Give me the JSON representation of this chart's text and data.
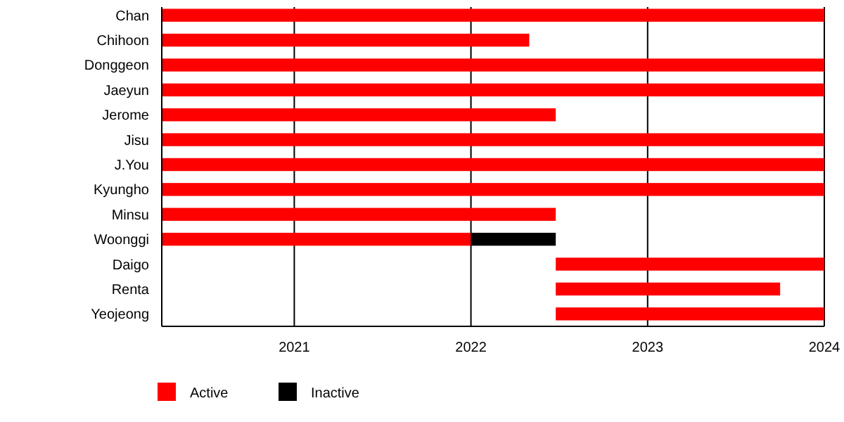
{
  "chart_data": {
    "type": "bar",
    "orientation": "horizontal",
    "categories": [
      "Chan",
      "Chihoon",
      "Donggeon",
      "Jaeyun",
      "Jerome",
      "Jisu",
      "J.You",
      "Kyungho",
      "Minsu",
      "Woonggi",
      "Daigo",
      "Renta",
      "Yeojeong"
    ],
    "series": [
      {
        "name": "Active",
        "color": "#ff0000",
        "base": [
          2020.25,
          2020.25,
          2020.25,
          2020.25,
          2020.25,
          2020.25,
          2020.25,
          2020.25,
          2020.25,
          2020.25,
          2022.48,
          2022.48,
          2022.48
        ],
        "values": [
          3.75,
          2.08,
          3.75,
          3.75,
          2.23,
          3.75,
          3.75,
          3.75,
          2.23,
          1.75,
          1.52,
          1.27,
          1.52
        ]
      },
      {
        "name": "Inactive",
        "color": "#000000",
        "base": [
          null,
          null,
          null,
          null,
          null,
          null,
          null,
          null,
          null,
          2022,
          null,
          null,
          null
        ],
        "values": [
          null,
          null,
          null,
          null,
          null,
          null,
          null,
          null,
          null,
          0.48,
          null,
          null,
          null
        ]
      }
    ],
    "xlim": [
      2020.25,
      2024
    ],
    "xticks": [
      2021,
      2022,
      2023,
      2024
    ],
    "grid": "x",
    "legend": "bottom left"
  }
}
